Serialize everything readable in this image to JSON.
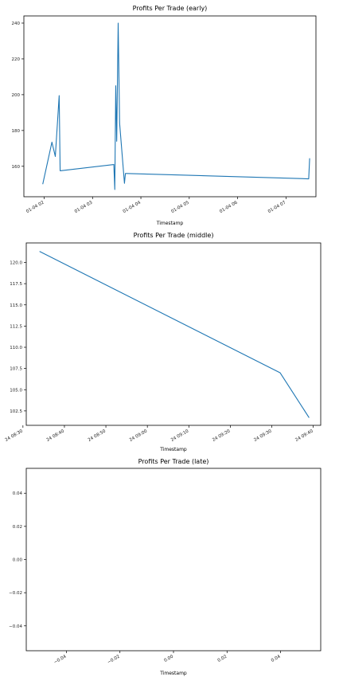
{
  "chart_data": [
    {
      "type": "line",
      "title": "Profits Per Trade (early)",
      "xlabel": "Timestamp",
      "ylabel": "",
      "x_type": "datetime",
      "x_ticks": [
        "01-04 02",
        "01-04 03",
        "01-04 04",
        "01-04 05",
        "01-04 06",
        "01-04 07"
      ],
      "x_tick_values": [
        2.0,
        3.0,
        4.0,
        5.0,
        6.0,
        7.0
      ],
      "x_unit": "hours on 01-04",
      "xlim": [
        1.58,
        7.62
      ],
      "y_ticks": [
        "160",
        "180",
        "200",
        "220",
        "240"
      ],
      "y_tick_values": [
        160,
        180,
        200,
        220,
        240
      ],
      "ylim": [
        143,
        244
      ],
      "grid": false,
      "series": [
        {
          "color": "#1f77b4",
          "x": [
            1.97,
            2.16,
            2.23,
            2.31,
            2.33,
            3.44,
            3.46,
            3.48,
            3.5,
            3.53,
            3.56,
            3.66,
            3.68,
            3.7,
            7.47,
            7.49
          ],
          "y": [
            150.0,
            173.5,
            165.5,
            199.5,
            157.5,
            161.0,
            147.0,
            205.0,
            174.0,
            240.0,
            184.0,
            150.5,
            156.0,
            156.0,
            153.0,
            164.5
          ]
        }
      ]
    },
    {
      "type": "line",
      "title": "Profits Per Trade (middle)",
      "xlabel": "Timestamp",
      "ylabel": "",
      "x_type": "datetime",
      "x_ticks": [
        "24 08:30",
        "24 08:40",
        "24 08:50",
        "24 09:00",
        "24 09:10",
        "24 09:20",
        "24 09:30",
        "24 09:40"
      ],
      "x_tick_values": [
        510,
        520,
        530,
        540,
        550,
        560,
        570,
        580
      ],
      "x_unit": "minutes on day 24",
      "xlim": [
        510.8,
        581.8
      ],
      "y_ticks": [
        "102.5",
        "105.0",
        "107.5",
        "110.0",
        "112.5",
        "115.0",
        "117.5",
        "120.0"
      ],
      "y_tick_values": [
        102.5,
        105.0,
        107.5,
        110.0,
        112.5,
        115.0,
        117.5,
        120.0
      ],
      "ylim": [
        100.8,
        122.3
      ],
      "grid": false,
      "series": [
        {
          "color": "#1f77b4",
          "x": [
            514.0,
            572.0,
            579.0
          ],
          "y": [
            121.3,
            107.0,
            101.7
          ]
        }
      ]
    },
    {
      "type": "line",
      "title": "Profits Per Trade (late)",
      "xlabel": "Timestamp",
      "ylabel": "",
      "x_ticks": [
        "−0.04",
        "−0.02",
        "0.00",
        "0.02",
        "0.04"
      ],
      "x_tick_values": [
        -0.04,
        -0.02,
        0.0,
        0.02,
        0.04
      ],
      "xlim": [
        -0.055,
        0.055
      ],
      "y_ticks": [
        "−0.04",
        "−0.02",
        "0.00",
        "0.02",
        "0.04"
      ],
      "y_tick_values": [
        -0.04,
        -0.02,
        0.0,
        0.02,
        0.04
      ],
      "ylim": [
        -0.055,
        0.055
      ],
      "grid": false,
      "series": []
    }
  ]
}
